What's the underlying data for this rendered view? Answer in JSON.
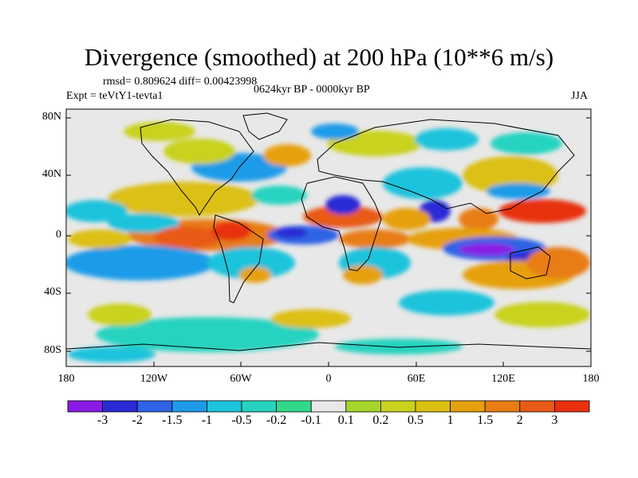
{
  "header": {
    "title": "Divergence (smoothed) at 200 hPa (10**6 m/s)",
    "stats": "rmsd= 0.809624 diff= 0.00423998",
    "experiment": "Expt = teVtY1-tevta1",
    "period": "0624kyr BP - 0000kyr BP",
    "season": "JJA"
  },
  "axes": {
    "y_labels": [
      "80N",
      "40N",
      "0",
      "40S",
      "80S"
    ],
    "x_labels": [
      "180",
      "120W",
      "60W",
      "0",
      "60E",
      "120E",
      "180"
    ]
  },
  "colorbar": {
    "colors": [
      "#8a1ae6",
      "#2a2ad6",
      "#2f64e6",
      "#1e9be8",
      "#1fc3dc",
      "#27d3c0",
      "#33d98a",
      "#e8e8e8",
      "#a6d62a",
      "#c9d21f",
      "#dcc012",
      "#e6a00c",
      "#e87d15",
      "#e85a17",
      "#e8300f"
    ],
    "labels": [
      "-3",
      "-2",
      "-1.5",
      "-1",
      "-0.5",
      "-0.2",
      "-0.1",
      "0.1",
      "0.2",
      "0.5",
      "1",
      "1.5",
      "2",
      "3"
    ]
  }
}
